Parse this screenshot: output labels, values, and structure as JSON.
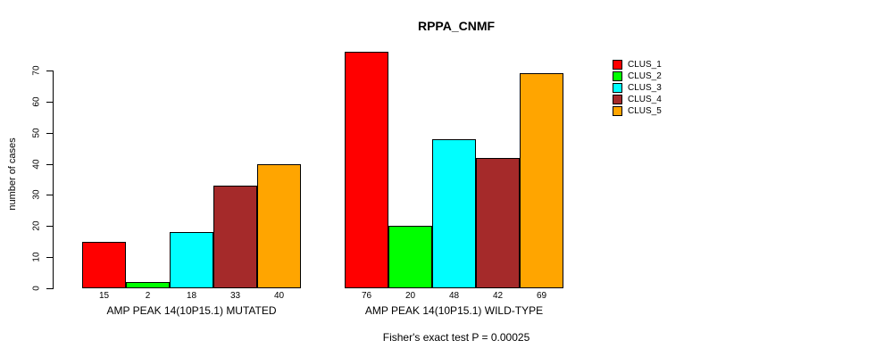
{
  "chart_data": {
    "type": "bar",
    "title": "RPPA_CNMF",
    "ylabel": "number of cases",
    "xlabel": "",
    "ylim": [
      0,
      70
    ],
    "yticks": [
      0,
      10,
      20,
      30,
      40,
      50,
      60,
      70
    ],
    "grid": false,
    "legend_position": "right",
    "categories": [
      "AMP PEAK 14(10P15.1) MUTATED",
      "AMP PEAK 14(10P15.1) WILD-TYPE"
    ],
    "series": [
      {
        "name": "CLUS_1",
        "color": "#FF0000",
        "values": [
          15,
          76
        ]
      },
      {
        "name": "CLUS_2",
        "color": "#00FF00",
        "values": [
          2,
          20
        ]
      },
      {
        "name": "CLUS_3",
        "color": "#00FFFF",
        "values": [
          18,
          48
        ]
      },
      {
        "name": "CLUS_4",
        "color": "#A52A2A",
        "values": [
          33,
          42
        ]
      },
      {
        "name": "CLUS_5",
        "color": "#FFA500",
        "values": [
          40,
          69
        ]
      }
    ],
    "bar_value_labels": {
      "group_1": [
        15,
        2,
        18,
        33,
        40
      ],
      "group_2": [
        76,
        20,
        48,
        42,
        69
      ]
    },
    "annotation": "Fisher's exact test P = 0.00025"
  }
}
